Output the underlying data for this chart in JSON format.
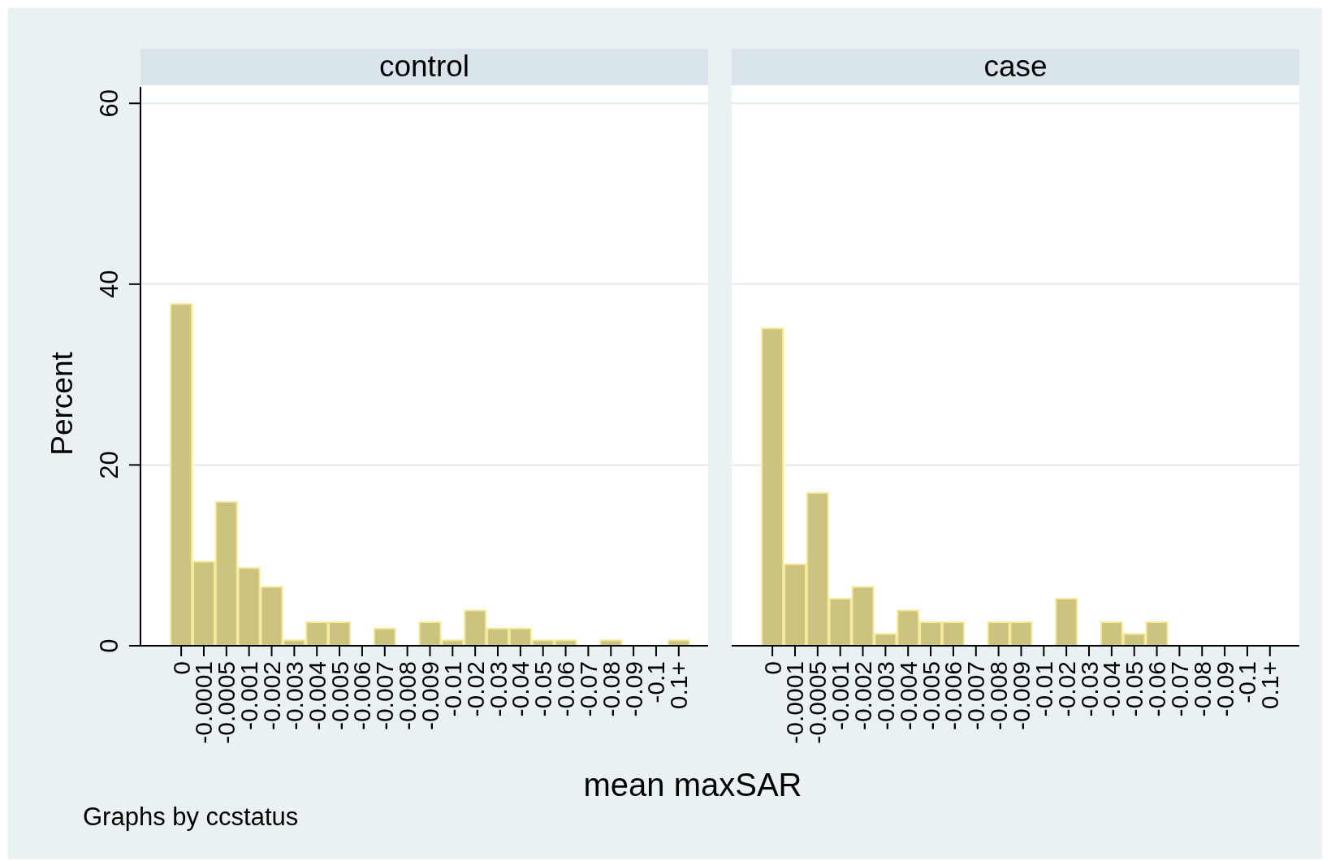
{
  "chart_data": [
    {
      "type": "bar",
      "title": "control",
      "xlabel": "mean maxSAR",
      "ylabel": "Percent",
      "annotations": [
        "Graphs by ccstatus"
      ],
      "categories": [
        "0",
        "-0.0001",
        "-0.0005",
        "-0.001",
        "-0.002",
        "-0.003",
        "-0.004",
        "-0.005",
        "-0.006",
        "-0.007",
        "-0.008",
        "-0.009",
        "-0.01",
        "-0.02",
        "-0.03",
        "-0.04",
        "-0.05",
        "-0.06",
        "-0.07",
        "-0.08",
        "-0.09",
        "-0.1",
        "0.1+"
      ],
      "values": [
        37.8,
        9.3,
        15.9,
        8.6,
        6.5,
        0.6,
        2.6,
        2.6,
        0,
        1.9,
        0,
        2.6,
        0.6,
        3.9,
        1.9,
        1.9,
        0.6,
        0.6,
        0,
        0.6,
        0,
        0,
        0.6
      ],
      "color": "#cbc37f",
      "ylim": [
        0,
        62
      ],
      "yticks": [
        0,
        20,
        40,
        60
      ],
      "grid": "y"
    },
    {
      "type": "bar",
      "title": "case",
      "categories": [
        "0",
        "-0.0001",
        "-0.0005",
        "-0.001",
        "-0.002",
        "-0.003",
        "-0.004",
        "-0.005",
        "-0.006",
        "-0.007",
        "-0.008",
        "-0.009",
        "-0.01",
        "-0.02",
        "-0.03",
        "-0.04",
        "-0.05",
        "-0.06",
        "-0.07",
        "-0.08",
        "-0.09",
        "-0.1",
        "0.1+"
      ],
      "values": [
        35.1,
        9.0,
        16.9,
        5.2,
        6.5,
        1.3,
        3.9,
        2.6,
        2.6,
        0,
        2.6,
        2.6,
        0,
        5.2,
        0,
        2.6,
        1.3,
        2.6,
        0,
        0,
        0,
        0,
        0
      ],
      "color": "#cbc37f",
      "ylim": [
        0,
        62
      ],
      "yticks": [
        0,
        20,
        40,
        60
      ],
      "grid": "y",
      "tick_labels": "x"
    }
  ]
}
